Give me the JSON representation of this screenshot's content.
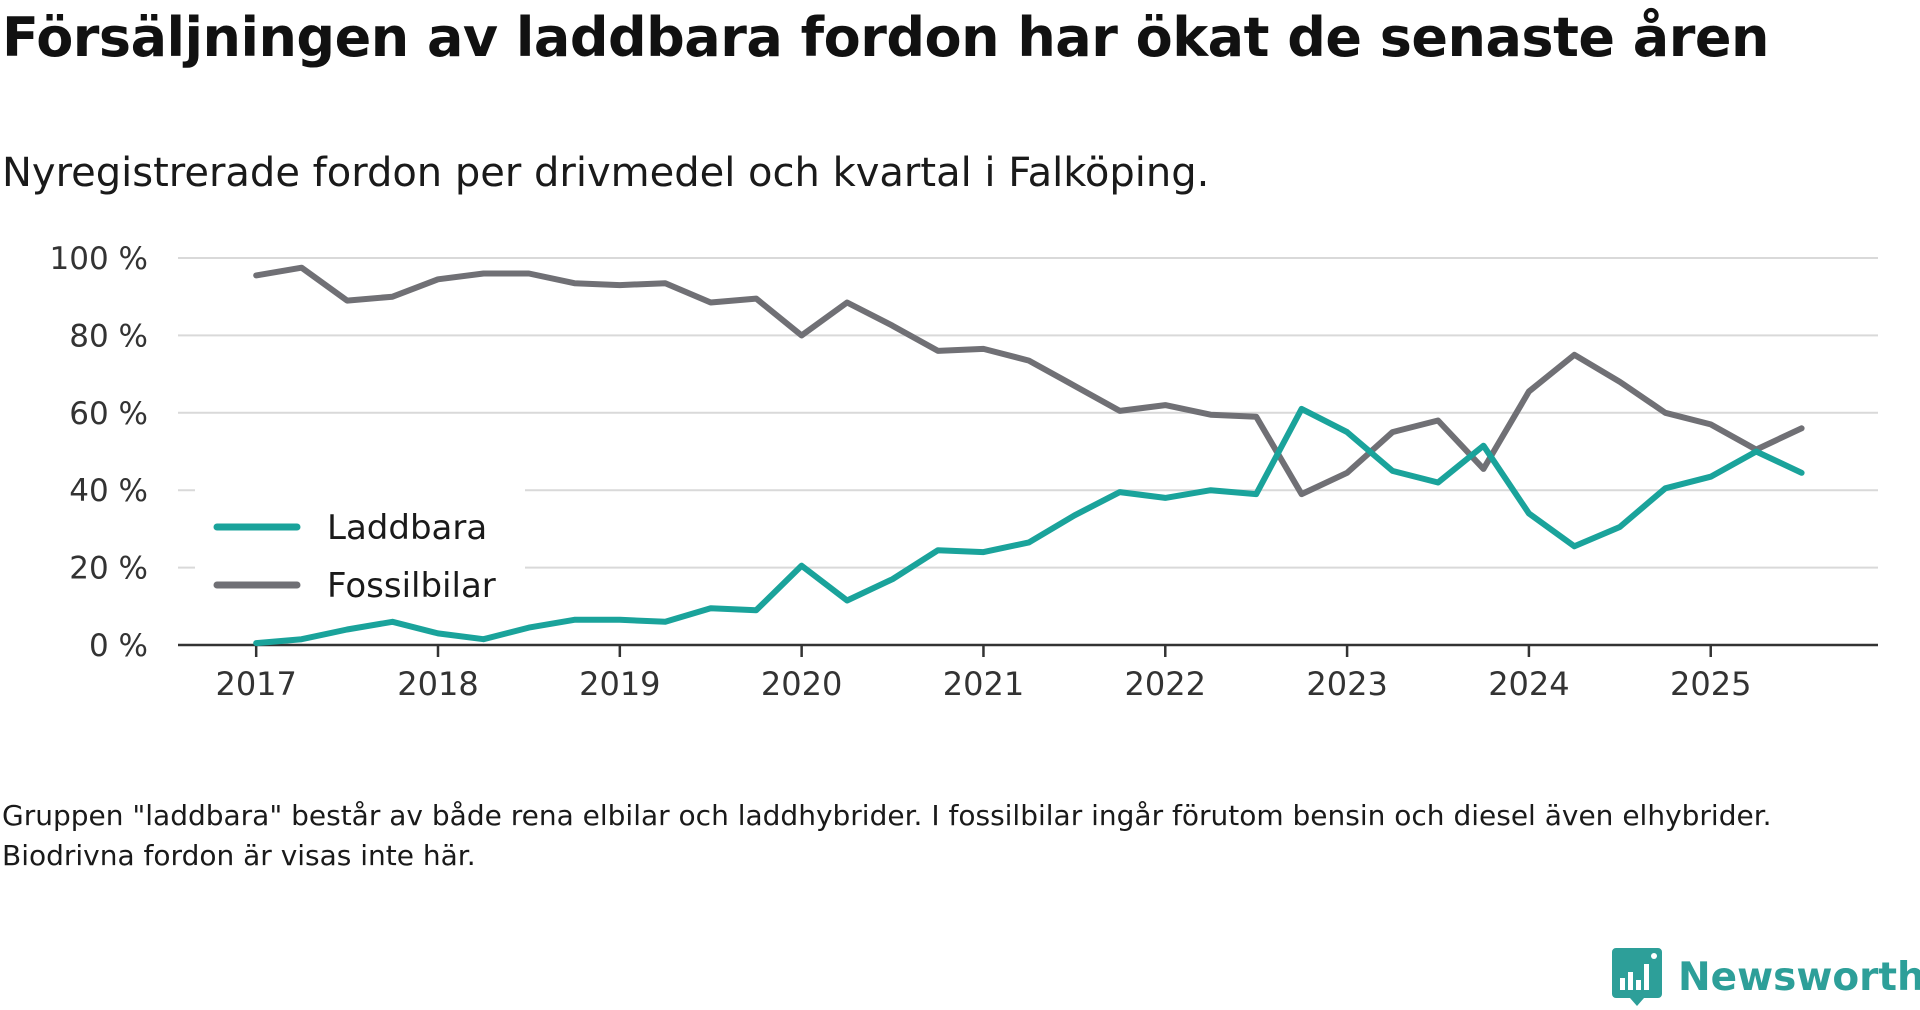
{
  "title": "Försäljningen av laddbara fordon har ökat de senaste åren",
  "subtitle": "Nyregistrerade fordon per drivmedel och kvartal i Falköping.",
  "footnote": "Gruppen \"laddbara\" består av både rena elbilar och laddhybrider. I fossilbilar ingår förutom bensin och diesel även elhybrider. Biodrivna fordon är visas inte här.",
  "brand": {
    "name": "Newsworthy",
    "icon": "newsworthy-logo-icon",
    "color": "#2d9f99"
  },
  "chart_data": {
    "type": "line",
    "title": "Försäljningen av laddbara fordon har ökat de senaste åren",
    "xlabel": "",
    "ylabel": "",
    "x": [
      2017.0,
      2017.25,
      2017.5,
      2017.75,
      2018.0,
      2018.25,
      2018.5,
      2018.75,
      2019.0,
      2019.25,
      2019.5,
      2019.75,
      2020.0,
      2020.25,
      2020.5,
      2020.75,
      2021.0,
      2021.25,
      2021.5,
      2021.75,
      2022.0,
      2022.25,
      2022.5,
      2022.75,
      2023.0,
      2023.25,
      2023.5,
      2023.75,
      2024.0,
      2024.25,
      2024.5,
      2024.75,
      2025.0,
      2025.25,
      2025.5
    ],
    "xlim": [
      2016.57,
      2025.92
    ],
    "ylim": [
      0,
      100
    ],
    "x_ticks": [
      2017,
      2018,
      2019,
      2020,
      2021,
      2022,
      2023,
      2024,
      2025
    ],
    "x_tick_labels": [
      "2017",
      "2018",
      "2019",
      "2020",
      "2021",
      "2022",
      "2023",
      "2024",
      "2025"
    ],
    "y_ticks": [
      0,
      20,
      40,
      60,
      80,
      100
    ],
    "y_tick_labels": [
      "0 %",
      "20 %",
      "40 %",
      "60 %",
      "80 %",
      "100 %"
    ],
    "grid": true,
    "legend_position": "center-left",
    "series": [
      {
        "name": "Laddbara",
        "color": "#1aa39b",
        "values": [
          0.5,
          1.5,
          4,
          6,
          3,
          1.5,
          4.5,
          6.5,
          6.5,
          6,
          9.5,
          9,
          20.5,
          11.5,
          17,
          24.5,
          24,
          26.5,
          33.5,
          39.5,
          38,
          40,
          39,
          61,
          55,
          45,
          42,
          51.5,
          34,
          25.5,
          30.5,
          40.5,
          43.5,
          50,
          44.5
        ]
      },
      {
        "name": "Fossilbilar",
        "color": "#707075",
        "values": [
          95.5,
          97.5,
          89,
          90,
          94.5,
          96,
          96,
          93.5,
          93,
          93.5,
          88.5,
          89.5,
          80,
          88.5,
          82.5,
          76,
          76.5,
          73.5,
          67,
          60.5,
          62,
          59.5,
          59,
          39,
          44.5,
          55,
          58,
          45.5,
          65.5,
          75,
          68,
          60,
          57,
          50.5,
          56
        ]
      }
    ]
  }
}
